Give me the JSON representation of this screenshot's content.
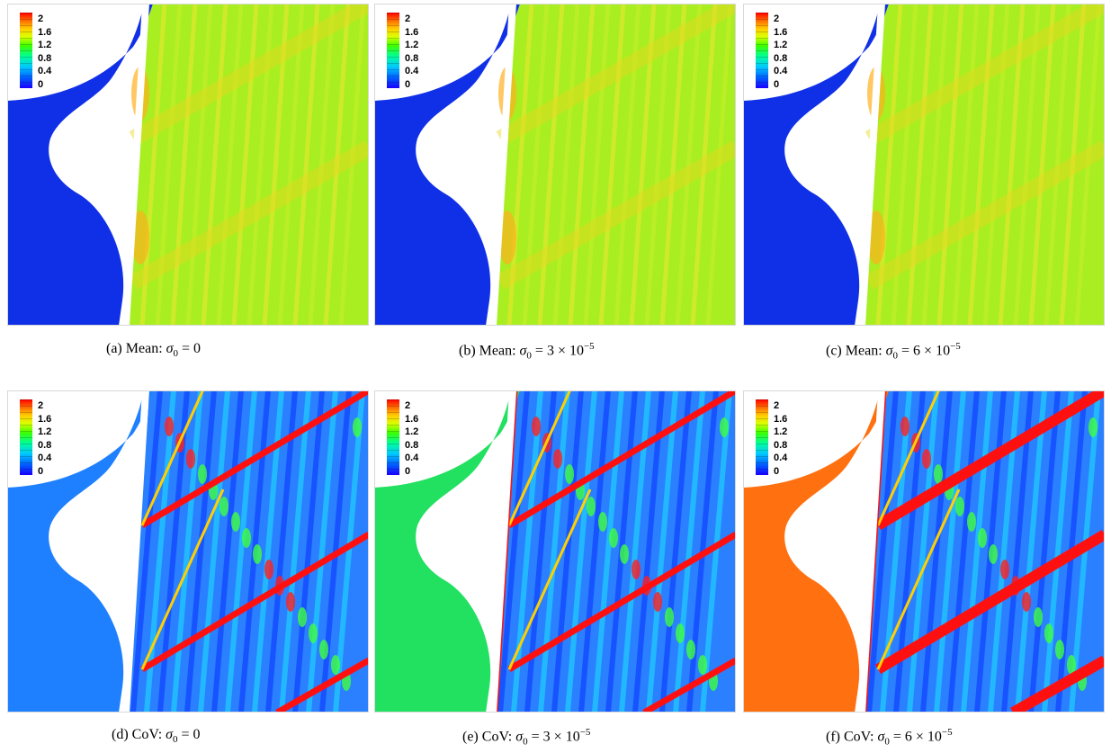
{
  "panels": [
    {
      "id": "a",
      "label": "(a)",
      "quantity": "Mean:",
      "sigma": "σ",
      "sub": "0",
      "eq": "= 0",
      "exp": ""
    },
    {
      "id": "b",
      "label": "(b)",
      "quantity": "Mean:",
      "sigma": "σ",
      "sub": "0",
      "eq": "= 3 × 10",
      "exp": "−5"
    },
    {
      "id": "c",
      "label": "(c)",
      "quantity": "Mean:",
      "sigma": "σ",
      "sub": "0",
      "eq": "= 6 × 10",
      "exp": "−5"
    },
    {
      "id": "d",
      "label": "(d)",
      "quantity": "CoV:",
      "sigma": "σ",
      "sub": "0",
      "eq": "= 0",
      "exp": ""
    },
    {
      "id": "e",
      "label": "(e)",
      "quantity": "CoV:",
      "sigma": "σ",
      "sub": "0",
      "eq": "= 3 × 10",
      "exp": "−5"
    },
    {
      "id": "f",
      "label": "(f)",
      "quantity": "CoV:",
      "sigma": "σ",
      "sub": "0",
      "eq": "= 6 × 10",
      "exp": "−5"
    }
  ],
  "legend_ticks": [
    "2",
    "1.6",
    "1.2",
    "0.8",
    "0.4",
    "0"
  ],
  "colors": {
    "mean_inlet": "#1030e8",
    "mean_field": "#a8ee20",
    "cov_inlet_a": "#1e80ff",
    "cov_inlet_b": "#22e060",
    "cov_inlet_c": "#ff7010",
    "cov_field": "#2a80ff",
    "high": "#ff1010"
  }
}
